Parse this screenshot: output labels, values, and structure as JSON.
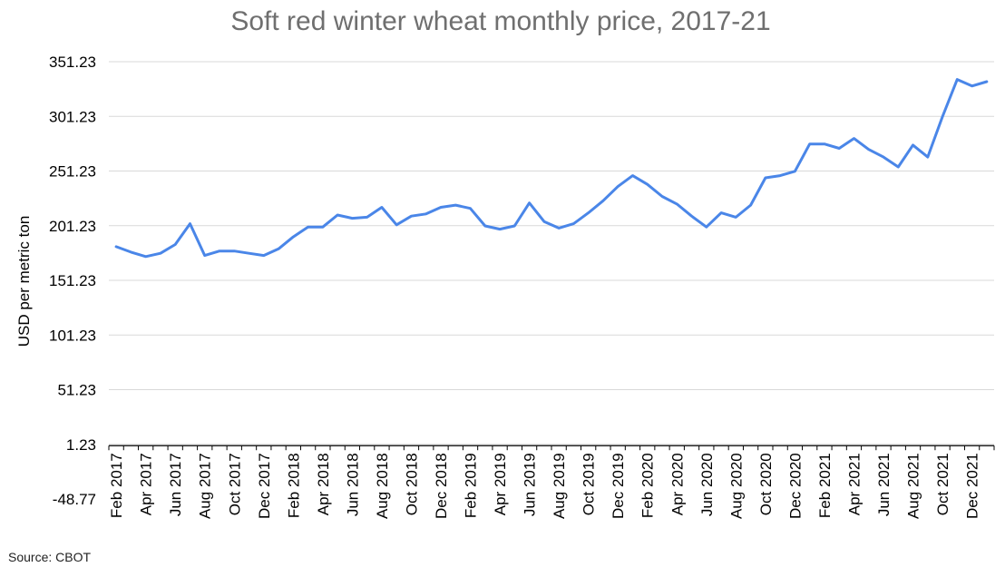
{
  "chart_data": {
    "type": "line",
    "title": "Soft red winter wheat monthly price, 2017-21",
    "ylabel": "USD per metric ton",
    "xlabel": "",
    "source": "Source: CBOT",
    "ylim": [
      -48.77,
      351.23
    ],
    "yticks": [
      "-48.77",
      "1.23",
      "51.23",
      "101.23",
      "151.23",
      "201.23",
      "251.23",
      "301.23",
      "351.23"
    ],
    "ytick_values": [
      -48.77,
      1.23,
      51.23,
      101.23,
      151.23,
      201.23,
      251.23,
      301.23,
      351.23
    ],
    "grid": true,
    "legend": "none",
    "line_color": "#4a86e8",
    "categories": [
      "Feb 2017",
      "Mar 2017",
      "Apr 2017",
      "May 2017",
      "Jun 2017",
      "Jul 2017",
      "Aug 2017",
      "Sep 2017",
      "Oct 2017",
      "Nov 2017",
      "Dec 2017",
      "Jan 2018",
      "Feb 2018",
      "Mar 2018",
      "Apr 2018",
      "May 2018",
      "Jun 2018",
      "Jul 2018",
      "Aug 2018",
      "Sep 2018",
      "Oct 2018",
      "Nov 2018",
      "Dec 2018",
      "Jan 2019",
      "Feb 2019",
      "Mar 2019",
      "Apr 2019",
      "May 2019",
      "Jun 2019",
      "Jul 2019",
      "Aug 2019",
      "Sep 2019",
      "Oct 2019",
      "Nov 2019",
      "Dec 2019",
      "Jan 2020",
      "Feb 2020",
      "Mar 2020",
      "Apr 2020",
      "May 2020",
      "Jun 2020",
      "Jul 2020",
      "Aug 2020",
      "Sep 2020",
      "Oct 2020",
      "Nov 2020",
      "Dec 2020",
      "Jan 2021",
      "Feb 2021",
      "Mar 2021",
      "Apr 2021",
      "May 2021",
      "Jun 2021",
      "Jul 2021",
      "Aug 2021",
      "Sep 2021",
      "Oct 2021",
      "Nov 2021",
      "Dec 2021",
      "Jan 2022"
    ],
    "tick_labels": [
      "Feb 2017",
      "Apr 2017",
      "Jun 2017",
      "Aug 2017",
      "Oct 2017",
      "Dec 2017",
      "Feb 2018",
      "Apr 2018",
      "Jun 2018",
      "Aug 2018",
      "Oct 2018",
      "Dec 2018",
      "Feb 2019",
      "Apr 2019",
      "Jun 2019",
      "Aug 2019",
      "Oct 2019",
      "Dec 2019",
      "Feb 2020",
      "Apr 2020",
      "Jun 2020",
      "Aug 2020",
      "Oct 2020",
      "Dec 2020",
      "Feb 2021",
      "Apr 2021",
      "Jun 2021",
      "Aug 2021",
      "Oct 2021",
      "Dec 2021"
    ],
    "values": [
      182,
      177,
      173,
      176,
      184,
      203,
      174,
      178,
      178,
      176,
      174,
      180,
      191,
      200,
      200,
      211,
      208,
      209,
      218,
      202,
      210,
      212,
      218,
      220,
      217,
      201,
      198,
      201,
      222,
      205,
      199,
      203,
      213,
      224,
      237,
      247,
      239,
      228,
      221,
      210,
      200,
      213,
      209,
      220,
      245,
      247,
      251,
      276,
      276,
      272,
      281,
      271,
      264,
      255,
      275,
      264,
      301,
      335,
      329,
      333
    ]
  }
}
